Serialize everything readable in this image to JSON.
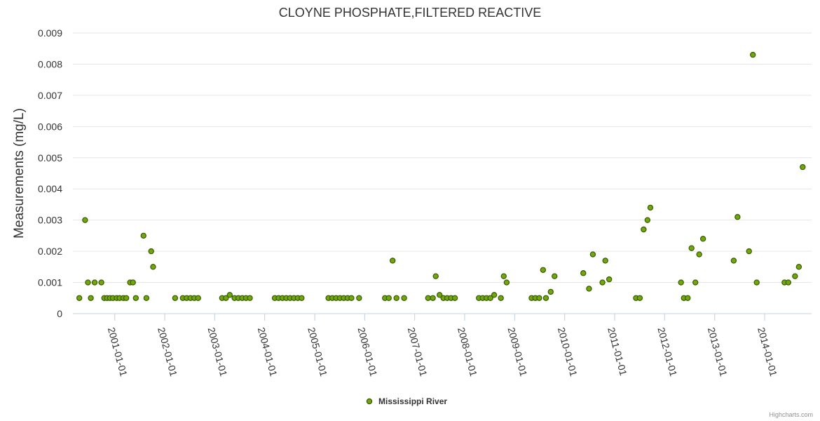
{
  "chart_data": {
    "type": "scatter",
    "title": "CLOYNE PHOSPHATE,FILTERED REACTIVE",
    "ylabel": "Measurements (mg/L)",
    "xlabel": "",
    "ylim": [
      0,
      0.009
    ],
    "yticks": [
      "0",
      "0.001",
      "0.002",
      "0.003",
      "0.004",
      "0.005",
      "0.006",
      "0.007",
      "0.008",
      "0.009"
    ],
    "xticks": [
      "2001-01-01",
      "2002-01-01",
      "2003-01-01",
      "2004-01-01",
      "2005-01-01",
      "2006-01-01",
      "2007-01-01",
      "2008-01-01",
      "2009-01-01",
      "2010-01-01",
      "2011-01-01",
      "2012-01-01",
      "2013-01-01",
      "2014-01-01"
    ],
    "xrange": [
      "2000-03-01",
      "2014-12-10"
    ],
    "grid": true,
    "legend_position": "bottom-center",
    "series_color": "#6fa70d",
    "series": [
      {
        "name": "Mississippi River",
        "points": [
          [
            "2000-04-17",
            0.0005
          ],
          [
            "2000-05-29",
            0.003
          ],
          [
            "2000-06-19",
            0.001
          ],
          [
            "2000-07-10",
            0.0005
          ],
          [
            "2000-08-07",
            0.001
          ],
          [
            "2000-09-25",
            0.001
          ],
          [
            "2000-10-16",
            0.0005
          ],
          [
            "2000-11-06",
            0.0005
          ],
          [
            "2000-11-27",
            0.0005
          ],
          [
            "2000-12-18",
            0.0005
          ],
          [
            "2001-01-15",
            0.0005
          ],
          [
            "2001-02-05",
            0.0005
          ],
          [
            "2001-03-05",
            0.0005
          ],
          [
            "2001-03-26",
            0.0005
          ],
          [
            "2001-04-23",
            0.001
          ],
          [
            "2001-05-14",
            0.001
          ],
          [
            "2001-06-04",
            0.0005
          ],
          [
            "2001-07-30",
            0.0025
          ],
          [
            "2001-08-20",
            0.0005
          ],
          [
            "2001-09-24",
            0.002
          ],
          [
            "2001-10-08",
            0.0015
          ],
          [
            "2002-03-18",
            0.0005
          ],
          [
            "2002-05-13",
            0.0005
          ],
          [
            "2002-06-10",
            0.0005
          ],
          [
            "2002-07-08",
            0.0005
          ],
          [
            "2002-08-05",
            0.0005
          ],
          [
            "2002-09-02",
            0.0005
          ],
          [
            "2003-02-24",
            0.0005
          ],
          [
            "2003-03-24",
            0.0005
          ],
          [
            "2003-04-21",
            0.0006
          ],
          [
            "2003-05-26",
            0.0005
          ],
          [
            "2003-06-23",
            0.0005
          ],
          [
            "2003-07-21",
            0.0005
          ],
          [
            "2003-08-18",
            0.0005
          ],
          [
            "2003-09-15",
            0.0005
          ],
          [
            "2004-03-15",
            0.0005
          ],
          [
            "2004-04-12",
            0.0005
          ],
          [
            "2004-05-10",
            0.0005
          ],
          [
            "2004-06-07",
            0.0005
          ],
          [
            "2004-07-05",
            0.0005
          ],
          [
            "2004-08-02",
            0.0005
          ],
          [
            "2004-08-30",
            0.0005
          ],
          [
            "2004-09-27",
            0.0005
          ],
          [
            "2005-04-11",
            0.0005
          ],
          [
            "2005-05-09",
            0.0005
          ],
          [
            "2005-06-06",
            0.0005
          ],
          [
            "2005-07-04",
            0.0005
          ],
          [
            "2005-08-01",
            0.0005
          ],
          [
            "2005-08-29",
            0.0005
          ],
          [
            "2005-09-26",
            0.0005
          ],
          [
            "2005-11-21",
            0.0005
          ],
          [
            "2006-05-29",
            0.0005
          ],
          [
            "2006-06-26",
            0.0005
          ],
          [
            "2006-07-24",
            0.0017
          ],
          [
            "2006-08-21",
            0.0005
          ],
          [
            "2006-10-16",
            0.0005
          ],
          [
            "2007-04-09",
            0.0005
          ],
          [
            "2007-05-14",
            0.0005
          ],
          [
            "2007-06-04",
            0.0012
          ],
          [
            "2007-07-02",
            0.0006
          ],
          [
            "2007-07-30",
            0.0005
          ],
          [
            "2007-08-27",
            0.0005
          ],
          [
            "2007-09-24",
            0.0005
          ],
          [
            "2007-10-22",
            0.0005
          ],
          [
            "2008-04-14",
            0.0005
          ],
          [
            "2008-05-12",
            0.0005
          ],
          [
            "2008-06-09",
            0.0005
          ],
          [
            "2008-07-07",
            0.0005
          ],
          [
            "2008-08-04",
            0.0006
          ],
          [
            "2008-09-22",
            0.0005
          ],
          [
            "2008-10-13",
            0.0012
          ],
          [
            "2008-11-03",
            0.001
          ],
          [
            "2009-05-04",
            0.0005
          ],
          [
            "2009-06-01",
            0.0005
          ],
          [
            "2009-06-29",
            0.0005
          ],
          [
            "2009-07-27",
            0.0014
          ],
          [
            "2009-08-17",
            0.0005
          ],
          [
            "2009-09-21",
            0.0007
          ],
          [
            "2009-10-19",
            0.0012
          ],
          [
            "2010-05-17",
            0.0013
          ],
          [
            "2010-06-28",
            0.0008
          ],
          [
            "2010-07-26",
            0.0019
          ],
          [
            "2010-10-04",
            0.001
          ],
          [
            "2010-10-25",
            0.0017
          ],
          [
            "2010-11-22",
            0.0011
          ],
          [
            "2011-06-06",
            0.0005
          ],
          [
            "2011-07-04",
            0.0005
          ],
          [
            "2011-08-01",
            0.0027
          ],
          [
            "2011-08-29",
            0.003
          ],
          [
            "2011-09-19",
            0.0034
          ],
          [
            "2012-04-30",
            0.001
          ],
          [
            "2012-05-21",
            0.0005
          ],
          [
            "2012-06-18",
            0.0005
          ],
          [
            "2012-07-16",
            0.0021
          ],
          [
            "2012-08-13",
            0.001
          ],
          [
            "2012-09-10",
            0.0019
          ],
          [
            "2012-10-08",
            0.0024
          ],
          [
            "2013-05-20",
            0.0017
          ],
          [
            "2013-06-17",
            0.0031
          ],
          [
            "2013-09-09",
            0.002
          ],
          [
            "2013-10-07",
            0.0083
          ],
          [
            "2013-11-04",
            0.001
          ],
          [
            "2014-05-26",
            0.001
          ],
          [
            "2014-06-23",
            0.001
          ],
          [
            "2014-08-11",
            0.0012
          ],
          [
            "2014-09-08",
            0.0015
          ],
          [
            "2014-10-06",
            0.0047
          ]
        ]
      }
    ]
  },
  "legend": {
    "label": "Mississippi River"
  },
  "credits": {
    "text": "Highcharts.com"
  }
}
